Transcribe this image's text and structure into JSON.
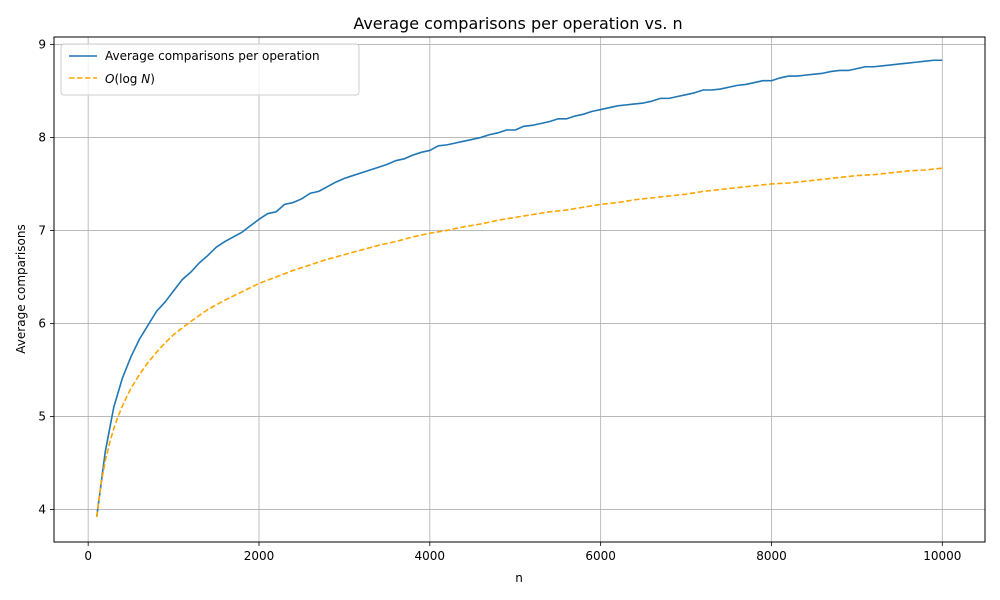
{
  "chart_data": {
    "type": "line",
    "title": "Average comparisons per operation vs. n",
    "xlabel": "n",
    "ylabel": "Average comparisons",
    "xlim": [
      -400,
      10500
    ],
    "ylim": [
      3.65,
      9.08
    ],
    "xticks": [
      0,
      2000,
      4000,
      6000,
      8000,
      10000
    ],
    "xtick_labels": [
      "0",
      "2000",
      "4000",
      "6000",
      "8000",
      "10000"
    ],
    "yticks": [
      4,
      5,
      6,
      7,
      8,
      9
    ],
    "ytick_labels": [
      "4",
      "5",
      "6",
      "7",
      "8",
      "9"
    ],
    "grid": true,
    "legend_position": "top-left",
    "series": [
      {
        "name": "Average comparisons per operation",
        "color": "#1f77b4",
        "style": "solid",
        "x": [
          100,
          200,
          300,
          400,
          500,
          600,
          700,
          800,
          900,
          1000,
          1100,
          1200,
          1300,
          1400,
          1500,
          1600,
          1700,
          1800,
          1900,
          2000,
          2100,
          2200,
          2300,
          2400,
          2500,
          2600,
          2700,
          2800,
          2900,
          3000,
          3100,
          3200,
          3300,
          3400,
          3500,
          3600,
          3700,
          3800,
          3900,
          4000,
          4100,
          4200,
          4300,
          4400,
          4500,
          4600,
          4700,
          4800,
          4900,
          5000,
          5100,
          5200,
          5300,
          5400,
          5500,
          5600,
          5700,
          5800,
          5900,
          6000,
          6100,
          6200,
          6300,
          6400,
          6500,
          6600,
          6700,
          6800,
          6900,
          7000,
          7100,
          7200,
          7300,
          7400,
          7500,
          7600,
          7700,
          7800,
          7900,
          8000,
          8100,
          8200,
          8300,
          8400,
          8500,
          8600,
          8700,
          8800,
          8900,
          9000,
          9100,
          9200,
          9300,
          9400,
          9500,
          9600,
          9700,
          9800,
          9900,
          10000
        ],
        "y": [
          3.92,
          4.62,
          5.1,
          5.41,
          5.64,
          5.83,
          5.98,
          6.13,
          6.23,
          6.35,
          6.47,
          6.55,
          6.65,
          6.73,
          6.82,
          6.88,
          6.93,
          6.98,
          7.05,
          7.12,
          7.18,
          7.2,
          7.28,
          7.3,
          7.34,
          7.4,
          7.42,
          7.47,
          7.52,
          7.56,
          7.59,
          7.62,
          7.65,
          7.68,
          7.71,
          7.75,
          7.77,
          7.81,
          7.84,
          7.86,
          7.91,
          7.92,
          7.94,
          7.96,
          7.98,
          8.0,
          8.03,
          8.05,
          8.08,
          8.08,
          8.12,
          8.13,
          8.15,
          8.17,
          8.2,
          8.2,
          8.23,
          8.25,
          8.28,
          8.3,
          8.32,
          8.34,
          8.35,
          8.36,
          8.37,
          8.39,
          8.42,
          8.42,
          8.44,
          8.46,
          8.48,
          8.51,
          8.51,
          8.52,
          8.54,
          8.56,
          8.57,
          8.59,
          8.61,
          8.61,
          8.64,
          8.66,
          8.66,
          8.67,
          8.68,
          8.69,
          8.71,
          8.72,
          8.72,
          8.74,
          8.76,
          8.76,
          8.77,
          8.78,
          8.79,
          8.8,
          8.81,
          8.82,
          8.83,
          8.83
        ]
      },
      {
        "name": "O(log N)",
        "color": "#ffa500",
        "style": "dashed",
        "x": [
          100,
          150,
          200,
          250,
          300,
          350,
          400,
          450,
          500,
          600,
          700,
          800,
          900,
          1000,
          1200,
          1400,
          1600,
          1800,
          2000,
          2200,
          2400,
          2600,
          2800,
          3000,
          3200,
          3400,
          3600,
          3800,
          4000,
          4200,
          4400,
          4600,
          4800,
          5000,
          5200,
          5400,
          5600,
          5800,
          6000,
          6200,
          6400,
          6600,
          6800,
          7000,
          7200,
          7400,
          7600,
          7800,
          8000,
          8200,
          8400,
          8600,
          8800,
          9000,
          9200,
          9400,
          9600,
          9800,
          10000
        ],
        "y": [
          3.92,
          4.27,
          4.52,
          4.71,
          4.87,
          5.0,
          5.11,
          5.21,
          5.3,
          5.45,
          5.58,
          5.69,
          5.79,
          5.88,
          6.02,
          6.15,
          6.25,
          6.34,
          6.43,
          6.5,
          6.57,
          6.63,
          6.69,
          6.74,
          6.79,
          6.84,
          6.88,
          6.93,
          6.97,
          7.0,
          7.04,
          7.07,
          7.11,
          7.14,
          7.17,
          7.2,
          7.22,
          7.25,
          7.28,
          7.3,
          7.33,
          7.35,
          7.37,
          7.39,
          7.42,
          7.44,
          7.46,
          7.48,
          7.5,
          7.51,
          7.53,
          7.55,
          7.57,
          7.59,
          7.6,
          7.62,
          7.64,
          7.65,
          7.67
        ]
      }
    ]
  }
}
